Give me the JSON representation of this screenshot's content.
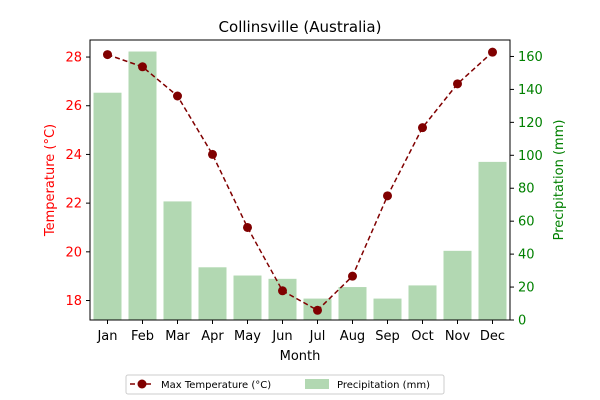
{
  "chart_data": {
    "type": "bar+line",
    "title": "Collinsville (Australia)",
    "xlabel": "Month",
    "categories": [
      "Jan",
      "Feb",
      "Mar",
      "Apr",
      "May",
      "Jun",
      "Jul",
      "Aug",
      "Sep",
      "Oct",
      "Nov",
      "Dec"
    ],
    "left_axis": {
      "label": "Temperature (°C)",
      "color": "#ff0000",
      "ylim": [
        17.2,
        28.7
      ],
      "ticks": [
        18,
        20,
        22,
        24,
        26,
        28
      ]
    },
    "right_axis": {
      "label": "Precipitation (mm)",
      "color": "#008000",
      "ylim": [
        0,
        170
      ],
      "ticks": [
        0,
        20,
        40,
        60,
        80,
        100,
        120,
        140,
        160
      ]
    },
    "series": [
      {
        "name": "Max Temperature (°C)",
        "type": "line",
        "axis": "left",
        "color": "#800000",
        "values": [
          28.1,
          27.6,
          26.4,
          24.0,
          21.0,
          18.4,
          17.6,
          19.0,
          22.3,
          25.1,
          26.9,
          28.2
        ]
      },
      {
        "name": "Precipitation (mm)",
        "type": "bar",
        "axis": "right",
        "color": "#b2d8b2",
        "values": [
          138,
          163,
          72,
          32,
          27,
          25,
          13,
          20,
          13,
          21,
          42,
          96
        ]
      }
    ],
    "legend": {
      "placement": "bottom-center"
    },
    "grid": false
  }
}
